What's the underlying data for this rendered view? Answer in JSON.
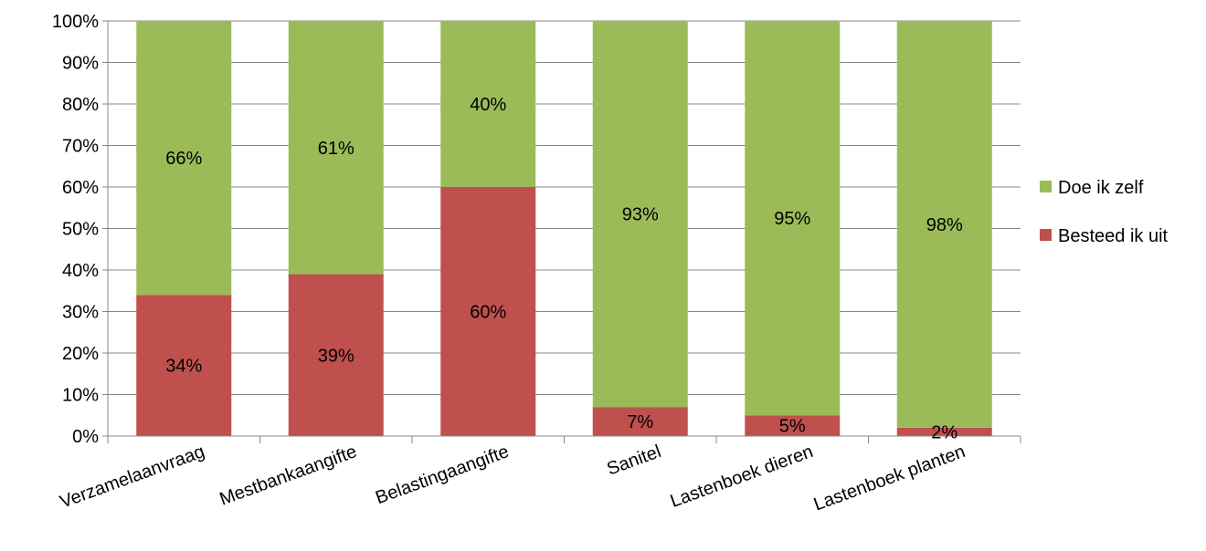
{
  "chart_data": {
    "type": "bar",
    "stacked": true,
    "categories": [
      "Verzamelaanvraag",
      "Mestbankaangifte",
      "Belastingaangifte",
      "Sanitel",
      "Lastenboek dieren",
      "Lastenboek planten"
    ],
    "series": [
      {
        "name": "Besteed ik uit",
        "color": "#c0504d",
        "values": [
          0.34,
          0.39,
          0.6,
          0.07,
          0.05,
          0.02
        ],
        "labels": [
          "34%",
          "39%",
          "60%",
          "7%",
          "5%",
          "2%"
        ]
      },
      {
        "name": "Doe ik zelf",
        "color": "#9bbb59",
        "values": [
          0.66,
          0.61,
          0.4,
          0.93,
          0.95,
          0.98
        ],
        "labels": [
          "66%",
          "61%",
          "40%",
          "93%",
          "95%",
          "98%"
        ]
      }
    ],
    "y_ticks": [
      "0%",
      "10%",
      "20%",
      "30%",
      "40%",
      "50%",
      "60%",
      "70%",
      "80%",
      "90%",
      "100%"
    ],
    "ylim": [
      0,
      1
    ],
    "grid": true,
    "legend": {
      "position": "right",
      "items": [
        {
          "name": "Doe ik zelf",
          "color": "#9bbb59"
        },
        {
          "name": "Besteed ik uit",
          "color": "#c0504d"
        }
      ]
    }
  }
}
